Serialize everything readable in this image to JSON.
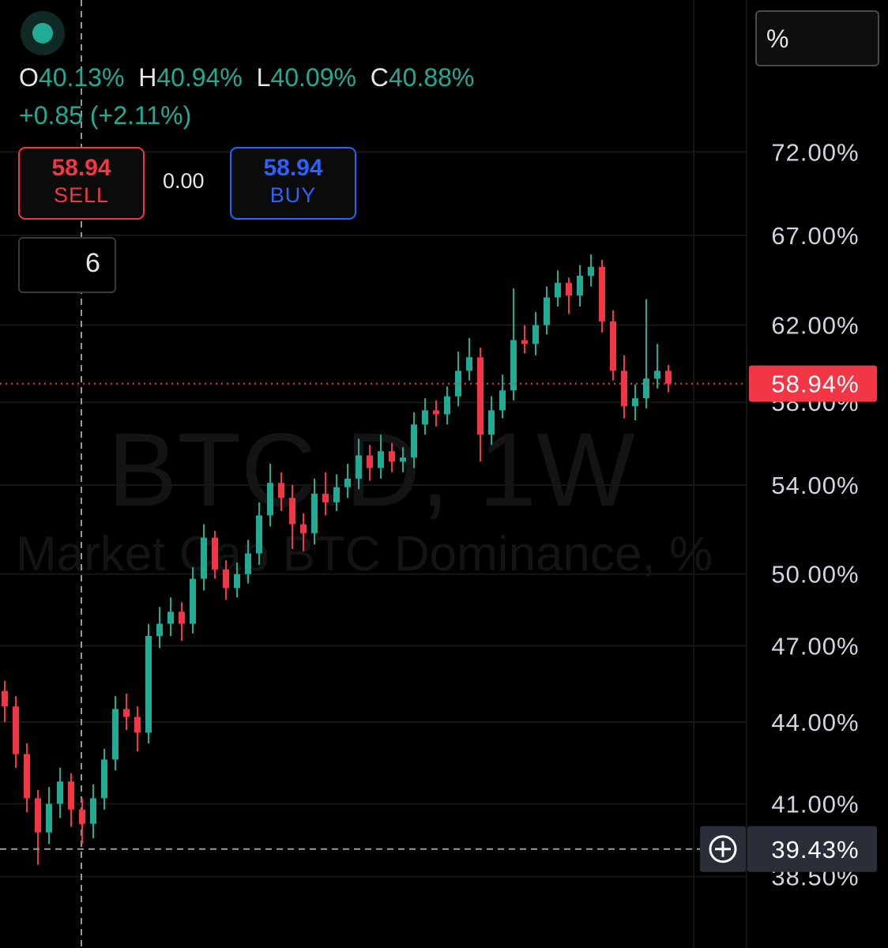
{
  "header": {
    "scale_button": "%"
  },
  "legend": {
    "open_label": "O",
    "open": "40.13%",
    "high_label": "H",
    "high": "40.94%",
    "low_label": "L",
    "low": "40.09%",
    "close_label": "C",
    "close": "40.88%",
    "change": "+0.85 (+2.11%)"
  },
  "order_panel": {
    "sell_price": "58.94",
    "sell_label": "SELL",
    "spread": "0.00",
    "buy_price": "58.94",
    "buy_label": "BUY"
  },
  "indicators_toggle": {
    "count": "6"
  },
  "chart_data": {
    "type": "candlestick",
    "watermark_symbol": "BTC.D, 1W",
    "watermark_description": "Market Cap BTC Dominance, %",
    "up_color": "#22ab94",
    "down_color": "#f23645",
    "log_scale": true,
    "grid": true,
    "ylim": [
      36.2,
      82.1
    ],
    "yticks": [
      {
        "value": 38.5,
        "label": "38.50%"
      },
      {
        "value": 41,
        "label": "41.00%"
      },
      {
        "value": 44,
        "label": "44.00%"
      },
      {
        "value": 47,
        "label": "47.00%"
      },
      {
        "value": 50,
        "label": "50.00%"
      },
      {
        "value": 54,
        "label": "54.00%"
      },
      {
        "value": 58,
        "label": "58.00%"
      },
      {
        "value": 62,
        "label": "62.00%"
      },
      {
        "value": 67,
        "label": "67.00%"
      },
      {
        "value": 72,
        "label": "72.00%"
      }
    ],
    "last_price": {
      "value": 58.94,
      "label": "58.94%"
    },
    "crosshair": {
      "value": 39.43,
      "label": "39.43%"
    },
    "open": [
      45.2,
      44.6,
      42.8,
      41.2,
      40.0,
      41.0,
      41.8,
      40.8,
      40.3,
      41.2,
      42.6,
      44.5,
      44.2,
      43.6,
      47.4,
      47.9,
      48.4,
      47.9,
      49.8,
      51.6,
      50.2,
      49.4,
      50.0,
      50.9,
      52.6,
      54.1,
      53.4,
      52.2,
      51.8,
      53.6,
      53.2,
      53.9,
      54.3,
      55.4,
      54.8,
      55.6,
      55.1,
      55.3,
      56.9,
      57.6,
      57.4,
      58.3,
      59.6,
      60.3,
      56.4,
      57.6,
      58.6,
      61.2,
      61.0,
      62.0,
      63.5,
      64.3,
      63.6,
      64.7,
      65.2,
      62.2,
      59.6,
      57.8,
      58.2,
      59.2,
      59.6
    ],
    "high": [
      45.6,
      45.0,
      43.2,
      41.5,
      41.6,
      42.3,
      42.1,
      41.2,
      41.7,
      43.0,
      45.0,
      45.1,
      44.6,
      47.9,
      48.6,
      49.0,
      48.8,
      50.3,
      52.2,
      51.9,
      50.6,
      50.5,
      51.5,
      53.2,
      55.0,
      54.6,
      54.0,
      52.7,
      54.3,
      54.6,
      54.5,
      55.0,
      56.2,
      55.9,
      56.4,
      56.0,
      55.8,
      57.5,
      58.2,
      58.1,
      58.8,
      60.6,
      61.3,
      60.8,
      58.3,
      59.4,
      64.0,
      62.0,
      62.7,
      64.1,
      65.0,
      64.6,
      65.3,
      65.9,
      65.6,
      62.8,
      60.4,
      58.9,
      63.4,
      61.0,
      59.9
    ],
    "low": [
      44.0,
      42.3,
      40.7,
      38.9,
      39.6,
      40.5,
      40.2,
      39.6,
      39.8,
      40.8,
      42.2,
      43.7,
      42.9,
      43.2,
      46.9,
      47.4,
      47.2,
      47.5,
      49.3,
      49.8,
      48.9,
      49.0,
      49.6,
      50.4,
      52.1,
      52.8,
      51.1,
      51.0,
      51.3,
      52.6,
      52.8,
      53.4,
      53.8,
      54.2,
      54.3,
      54.6,
      54.6,
      54.8,
      56.4,
      56.8,
      56.9,
      57.8,
      59.1,
      55.1,
      55.9,
      57.2,
      58.1,
      60.5,
      60.4,
      61.5,
      63.0,
      62.6,
      63.0,
      64.1,
      61.6,
      59.1,
      57.2,
      57.1,
      57.7,
      58.7,
      58.5
    ],
    "close": [
      44.6,
      42.8,
      41.2,
      40.0,
      41.0,
      41.8,
      40.8,
      40.3,
      41.2,
      42.6,
      44.5,
      44.2,
      43.6,
      47.4,
      47.9,
      48.4,
      47.9,
      49.8,
      51.6,
      50.2,
      49.4,
      50.0,
      50.9,
      52.6,
      54.1,
      53.4,
      52.2,
      51.8,
      53.6,
      53.2,
      53.9,
      54.3,
      55.4,
      54.8,
      55.6,
      55.1,
      55.3,
      56.9,
      57.6,
      57.4,
      58.3,
      59.6,
      60.3,
      56.4,
      57.6,
      58.6,
      61.2,
      61.0,
      62.0,
      63.5,
      64.3,
      63.6,
      64.7,
      65.2,
      62.2,
      59.6,
      57.8,
      58.2,
      59.2,
      59.6,
      58.94
    ]
  }
}
